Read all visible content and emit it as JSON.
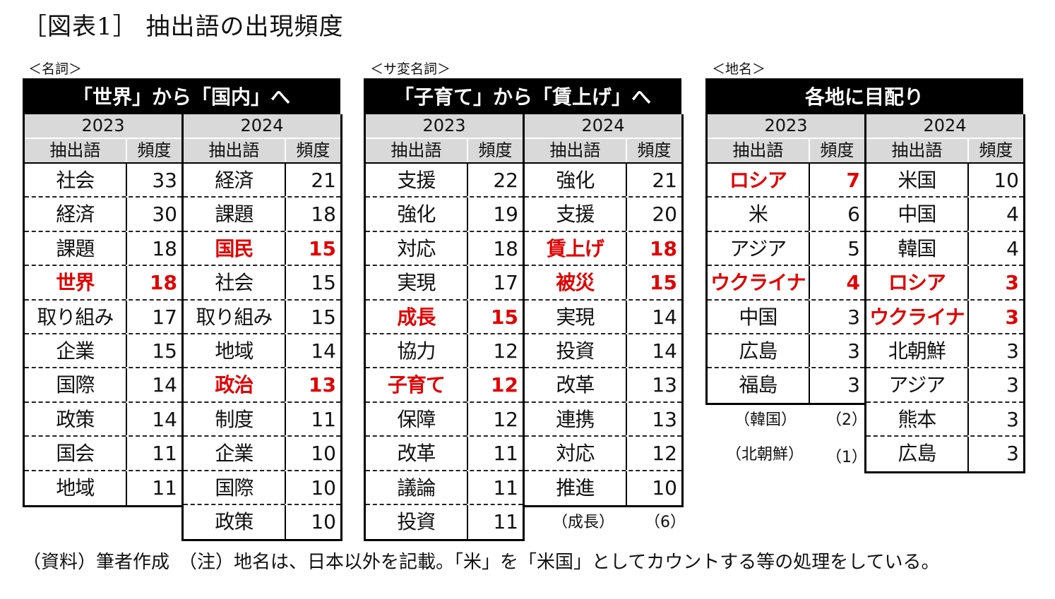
{
  "title": "［図表1］ 抽出語の出現頻度",
  "sections": {
    "noun": {
      "label": "＜名詞＞",
      "header": "「世界」から「国内」へ",
      "years": [
        "2023",
        "2024"
      ],
      "col_word": "抽出語",
      "col_freq": "頻度",
      "y2023": [
        {
          "w": "社会",
          "n": "33",
          "hl": false
        },
        {
          "w": "経済",
          "n": "30",
          "hl": false
        },
        {
          "w": "課題",
          "n": "18",
          "hl": false
        },
        {
          "w": "世界",
          "n": "18",
          "hl": true
        },
        {
          "w": "取り組み",
          "n": "17",
          "hl": false
        },
        {
          "w": "企業",
          "n": "15",
          "hl": false
        },
        {
          "w": "国際",
          "n": "14",
          "hl": false
        },
        {
          "w": "政策",
          "n": "14",
          "hl": false
        },
        {
          "w": "国会",
          "n": "11",
          "hl": false
        },
        {
          "w": "地域",
          "n": "11",
          "hl": false
        }
      ],
      "y2024": [
        {
          "w": "経済",
          "n": "21",
          "hl": false
        },
        {
          "w": "課題",
          "n": "18",
          "hl": false
        },
        {
          "w": "国民",
          "n": "15",
          "hl": true
        },
        {
          "w": "社会",
          "n": "15",
          "hl": false
        },
        {
          "w": "取り組み",
          "n": "15",
          "hl": false
        },
        {
          "w": "地域",
          "n": "14",
          "hl": false
        },
        {
          "w": "政治",
          "n": "13",
          "hl": true
        },
        {
          "w": "制度",
          "n": "11",
          "hl": false
        },
        {
          "w": "企業",
          "n": "10",
          "hl": false
        },
        {
          "w": "国際",
          "n": "10",
          "hl": false
        },
        {
          "w": "政策",
          "n": "10",
          "hl": false
        }
      ]
    },
    "sahen": {
      "label": "＜サ変名詞＞",
      "header": "「子育て」から「賃上げ」へ",
      "years": [
        "2023",
        "2024"
      ],
      "col_word": "抽出語",
      "col_freq": "頻度",
      "y2023": [
        {
          "w": "支援",
          "n": "22",
          "hl": false
        },
        {
          "w": "強化",
          "n": "19",
          "hl": false
        },
        {
          "w": "対応",
          "n": "18",
          "hl": false
        },
        {
          "w": "実現",
          "n": "17",
          "hl": false
        },
        {
          "w": "成長",
          "n": "15",
          "hl": true
        },
        {
          "w": "協力",
          "n": "12",
          "hl": false
        },
        {
          "w": "子育て",
          "n": "12",
          "hl": true
        },
        {
          "w": "保障",
          "n": "12",
          "hl": false
        },
        {
          "w": "改革",
          "n": "11",
          "hl": false
        },
        {
          "w": "議論",
          "n": "11",
          "hl": false
        },
        {
          "w": "投資",
          "n": "11",
          "hl": false
        }
      ],
      "y2024": [
        {
          "w": "強化",
          "n": "21",
          "hl": false
        },
        {
          "w": "支援",
          "n": "20",
          "hl": false
        },
        {
          "w": "賃上げ",
          "n": "18",
          "hl": true
        },
        {
          "w": "被災",
          "n": "15",
          "hl": true
        },
        {
          "w": "実現",
          "n": "14",
          "hl": false
        },
        {
          "w": "投資",
          "n": "14",
          "hl": false
        },
        {
          "w": "改革",
          "n": "13",
          "hl": false
        },
        {
          "w": "連携",
          "n": "13",
          "hl": false
        },
        {
          "w": "対応",
          "n": "12",
          "hl": false
        },
        {
          "w": "推進",
          "n": "10",
          "hl": false
        }
      ],
      "extra_2024": {
        "w": "（成長）",
        "n": "（6）"
      }
    },
    "place": {
      "label": "＜地名＞",
      "header": "各地に目配り",
      "years": [
        "2023",
        "2024"
      ],
      "col_word": "抽出語",
      "col_freq": "頻度",
      "y2023": [
        {
          "w": "ロシア",
          "n": "7",
          "hl": true
        },
        {
          "w": "米",
          "n": "6",
          "hl": false
        },
        {
          "w": "アジア",
          "n": "5",
          "hl": false
        },
        {
          "w": "ウクライナ",
          "n": "4",
          "hl": true
        },
        {
          "w": "中国",
          "n": "3",
          "hl": false
        },
        {
          "w": "広島",
          "n": "3",
          "hl": false
        },
        {
          "w": "福島",
          "n": "3",
          "hl": false
        }
      ],
      "y2024": [
        {
          "w": "米国",
          "n": "10",
          "hl": false
        },
        {
          "w": "中国",
          "n": "4",
          "hl": false
        },
        {
          "w": "韓国",
          "n": "4",
          "hl": false
        },
        {
          "w": "ロシア",
          "n": "3",
          "hl": true
        },
        {
          "w": "ウクライナ",
          "n": "3",
          "hl": true
        },
        {
          "w": "北朝鮮",
          "n": "3",
          "hl": false
        },
        {
          "w": "アジア",
          "n": "3",
          "hl": false
        },
        {
          "w": "熊本",
          "n": "3",
          "hl": false
        },
        {
          "w": "広島",
          "n": "3",
          "hl": false
        }
      ],
      "extra_2023": [
        {
          "w": "（韓国）",
          "n": "（2）"
        },
        {
          "w": "（北朝鮮）",
          "n": "（1）"
        }
      ]
    }
  },
  "note": "（資料）筆者作成　（注）地名は、日本以外を記載。「米」を「米国」としてカウントする等の処理をしている。",
  "colors": {
    "highlight": "#e00000",
    "header_bg": "#000000",
    "subheader_bg": "#d9d9d9"
  }
}
